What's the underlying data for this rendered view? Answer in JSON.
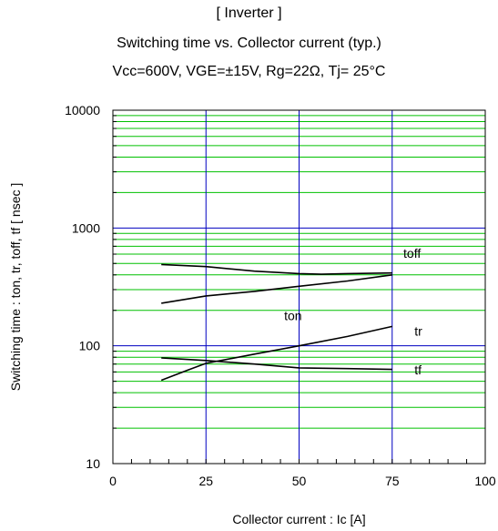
{
  "chart_data": {
    "type": "line",
    "title": "[ Inverter ]",
    "subtitle": "Switching time  vs.  Collector current  (typ.)",
    "conditions": "Vcc=600V, VGE=±15V, Rg=22Ω, Tj= 25°C",
    "xlabel": "Collector current : Ic [A]",
    "ylabel": "Switching time  :  ton, tr, toff, tf  [ nsec ]",
    "xlim": [
      0,
      100
    ],
    "ylim": [
      10,
      10000
    ],
    "yscale": "log",
    "grid": true,
    "x_ticks": [
      0,
      25,
      50,
      75,
      100
    ],
    "y_ticks": [
      10,
      100,
      1000,
      10000
    ],
    "series": [
      {
        "name": "toff",
        "x": [
          13,
          25,
          38,
          50,
          56,
          63,
          75
        ],
        "y": [
          490,
          470,
          430,
          410,
          405,
          410,
          415
        ]
      },
      {
        "name": "ton",
        "x": [
          13,
          25,
          38,
          50,
          63,
          75
        ],
        "y": [
          230,
          265,
          290,
          320,
          355,
          400
        ]
      },
      {
        "name": "tr",
        "x": [
          13,
          20,
          25,
          38,
          50,
          63,
          75
        ],
        "y": [
          51,
          62,
          71,
          85,
          100,
          120,
          146
        ]
      },
      {
        "name": "tf",
        "x": [
          13,
          25,
          38,
          50,
          63,
          75
        ],
        "y": [
          79,
          75,
          70,
          65,
          64,
          63
        ]
      }
    ]
  }
}
